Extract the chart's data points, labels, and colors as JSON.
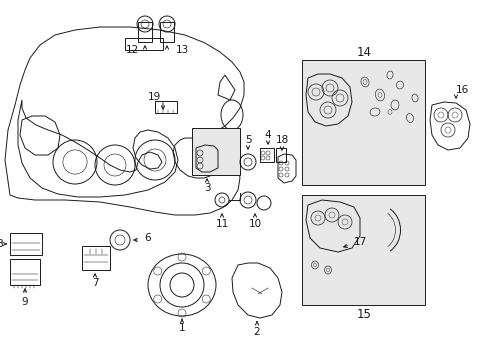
{
  "bg_color": "#ffffff",
  "line_color": "#1a1a1a",
  "fig_width": 4.89,
  "fig_height": 3.6,
  "dpi": 100,
  "gray_fill": "#e8e8e8",
  "label_fontsize": 7.5
}
